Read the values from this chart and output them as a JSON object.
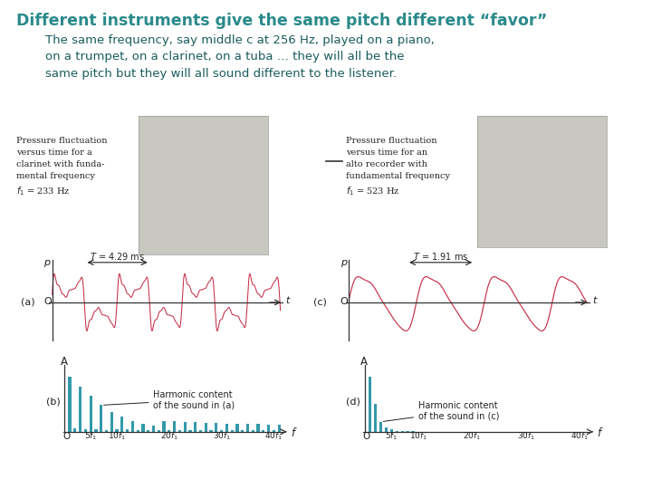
{
  "title": "Different instruments give the same pitch different “favor”",
  "title_color": "#2a8a8a",
  "subtitle_line1": "The same frequency, say middle c at 256 Hz, played on a piano,",
  "subtitle_line2": "on a trumpet, on a clarinet, on a tuba … they will all be the",
  "subtitle_line3": "same pitch but they will all sound different to the listener.",
  "subtitle_color": "#1a5c5c",
  "bg_color": "#ffffff",
  "clarinet_text": "Pressure fluctuation\nversus time for a\nclarinet with funda-\nmental frequency\n$f_1$ = 233 Hz",
  "recorder_text": "Pressure fluctuation\nversus time for an\nalto recorder with\nfundamental frequency\n$f_1$ = 523 Hz",
  "period_a": "$T$ = 4.29 ms",
  "period_c": "$T$ = 1.91 ms",
  "harmonic_label_b": "Harmonic content\nof the sound in (a)",
  "harmonic_label_d": "Harmonic content\nof the sound in (c)",
  "wave_color": "#c8304a",
  "bar_color": "#3399aa",
  "axis_color": "#333333",
  "text_color": "#222222",
  "photo_clarinet_color": "#cccccc",
  "photo_recorder_color": "#cccccc"
}
